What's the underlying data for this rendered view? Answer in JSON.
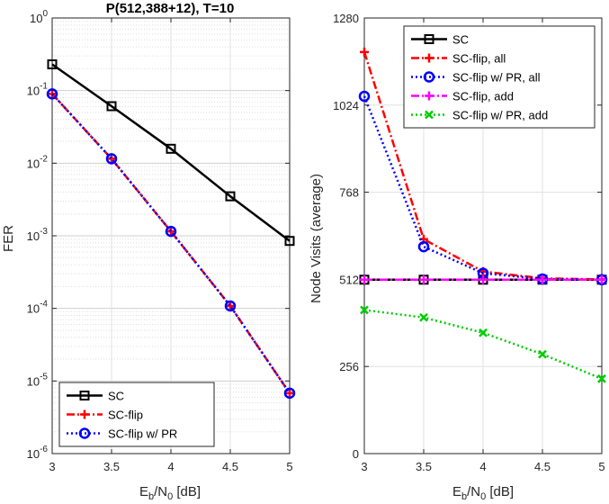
{
  "chart_data": [
    {
      "type": "line",
      "title": "P(512,388+12), T=10",
      "xlabel": "Eb/N0 [dB]",
      "ylabel": "FER",
      "yscale": "log",
      "xlim": [
        3,
        5
      ],
      "ylim": [
        1e-06,
        1
      ],
      "grid": true,
      "legend_position": "bottom-left",
      "x": [
        3,
        3.5,
        4,
        4.5,
        5
      ],
      "x_tick_labels": [
        "3",
        "3.5",
        "4",
        "4.5",
        "5"
      ],
      "y_tick_labels": [
        {
          "base": "10",
          "exp": "0"
        },
        {
          "base": "10",
          "exp": "-1"
        },
        {
          "base": "10",
          "exp": "-2"
        },
        {
          "base": "10",
          "exp": "-3"
        },
        {
          "base": "10",
          "exp": "-4"
        },
        {
          "base": "10",
          "exp": "-5"
        },
        {
          "base": "10",
          "exp": "-6"
        }
      ],
      "series": [
        {
          "name": "SC",
          "values": [
            0.23,
            0.061,
            0.0158,
            0.0035,
            0.00085
          ],
          "color": "#000000",
          "dash": "solid",
          "marker": "square"
        },
        {
          "name": "SC-flip",
          "values": [
            0.09,
            0.0115,
            0.00115,
            0.000108,
            6.8e-06
          ],
          "color": "#ff0000",
          "dash": "dashdot",
          "marker": "plus"
        },
        {
          "name": "SC-flip w/ PR",
          "values": [
            0.09,
            0.0115,
            0.00115,
            0.000108,
            6.8e-06
          ],
          "color": "#0000ff",
          "dash": "dotted",
          "marker": "circle"
        }
      ]
    },
    {
      "type": "line",
      "title": "",
      "xlabel": "Eb/N0 [dB]",
      "ylabel": "Node Visits (average)",
      "xlim": [
        3,
        5
      ],
      "ylim": [
        0,
        1280
      ],
      "grid": true,
      "legend_position": "top-right",
      "x": [
        3,
        3.5,
        4,
        4.5,
        5
      ],
      "x_tick_labels": [
        "3",
        "3.5",
        "4",
        "4.5",
        "5"
      ],
      "y_ticks": [
        0,
        256,
        512,
        768,
        1024,
        1280
      ],
      "y_tick_labels": [
        "0",
        "256",
        "512",
        "768",
        "1024",
        "1280"
      ],
      "series": [
        {
          "name": "SC",
          "values": [
            511,
            511,
            511,
            511,
            511
          ],
          "color": "#000000",
          "dash": "solid",
          "marker": "square"
        },
        {
          "name": "SC-flip, all",
          "values": [
            1180,
            630,
            535,
            515,
            512
          ],
          "color": "#ff0000",
          "dash": "dashdot",
          "marker": "plus"
        },
        {
          "name": "SC-flip w/ PR, all",
          "values": [
            1050,
            608,
            530,
            513,
            511
          ],
          "color": "#0000ff",
          "dash": "dotted",
          "marker": "circle"
        },
        {
          "name": "SC-flip, add",
          "values": [
            511,
            511,
            511,
            511,
            511
          ],
          "color": "#ff00ff",
          "dash": "dashdot",
          "marker": "plus"
        },
        {
          "name": "SC-flip w/ PR, add",
          "values": [
            422,
            400,
            355,
            292,
            220
          ],
          "color": "#00cc00",
          "dash": "dotted",
          "marker": "x"
        }
      ]
    }
  ]
}
